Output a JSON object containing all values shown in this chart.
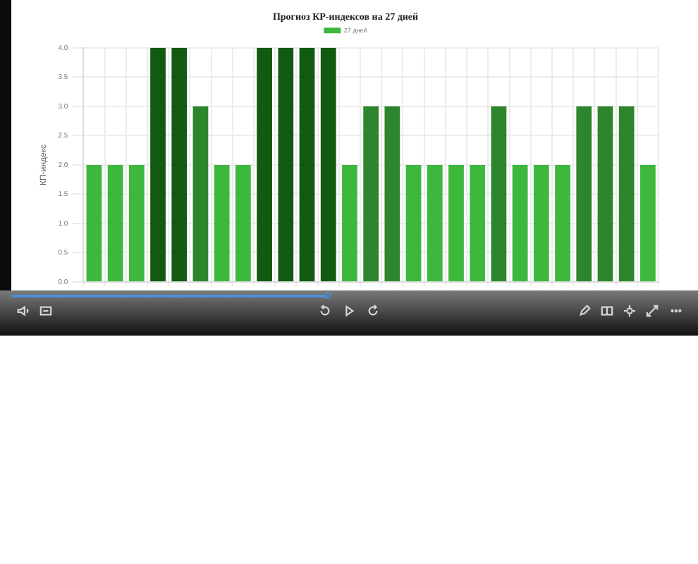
{
  "chart_data": {
    "type": "bar",
    "title": "Прогноз КР-индексов на 27 дней",
    "ylabel": "КП-индекс",
    "categories": [
      null,
      null,
      null,
      null,
      null,
      null,
      null,
      null,
      null,
      null,
      null,
      null,
      null,
      null,
      null,
      null,
      null,
      null,
      null,
      null,
      null,
      null,
      null,
      null,
      null,
      null,
      null
    ],
    "series": [
      {
        "name": "27 дней",
        "values": [
          2,
          2,
          2,
          4,
          4,
          3,
          2,
          2,
          4,
          4,
          4,
          4,
          2,
          3,
          3,
          2,
          2,
          2,
          2,
          3,
          2,
          2,
          2,
          3,
          3,
          3,
          2
        ],
        "colors": [
          "#3db83d",
          "#3db83d",
          "#3db83d",
          "#125a12",
          "#125a12",
          "#2d852d",
          "#3db83d",
          "#3db83d",
          "#125a12",
          "#125a12",
          "#125a12",
          "#125a12",
          "#3db83d",
          "#2d852d",
          "#2d852d",
          "#3db83d",
          "#3db83d",
          "#3db83d",
          "#3db83d",
          "#2d852d",
          "#3db83d",
          "#3db83d",
          "#3db83d",
          "#2d852d",
          "#2d852d",
          "#2d852d",
          "#3db83d"
        ]
      }
    ],
    "ylim": [
      0,
      4
    ],
    "yticks": [
      {
        "value": 0,
        "label": "0.0"
      },
      0.5,
      {
        "value": 1,
        "label": "1.0"
      },
      1.5,
      {
        "value": 2,
        "label": "2.0"
      },
      2.5,
      {
        "value": 3,
        "label": "3.0"
      },
      3.5,
      {
        "value": 4,
        "label": "4.0"
      }
    ],
    "grid": true,
    "legend": "top"
  }
}
